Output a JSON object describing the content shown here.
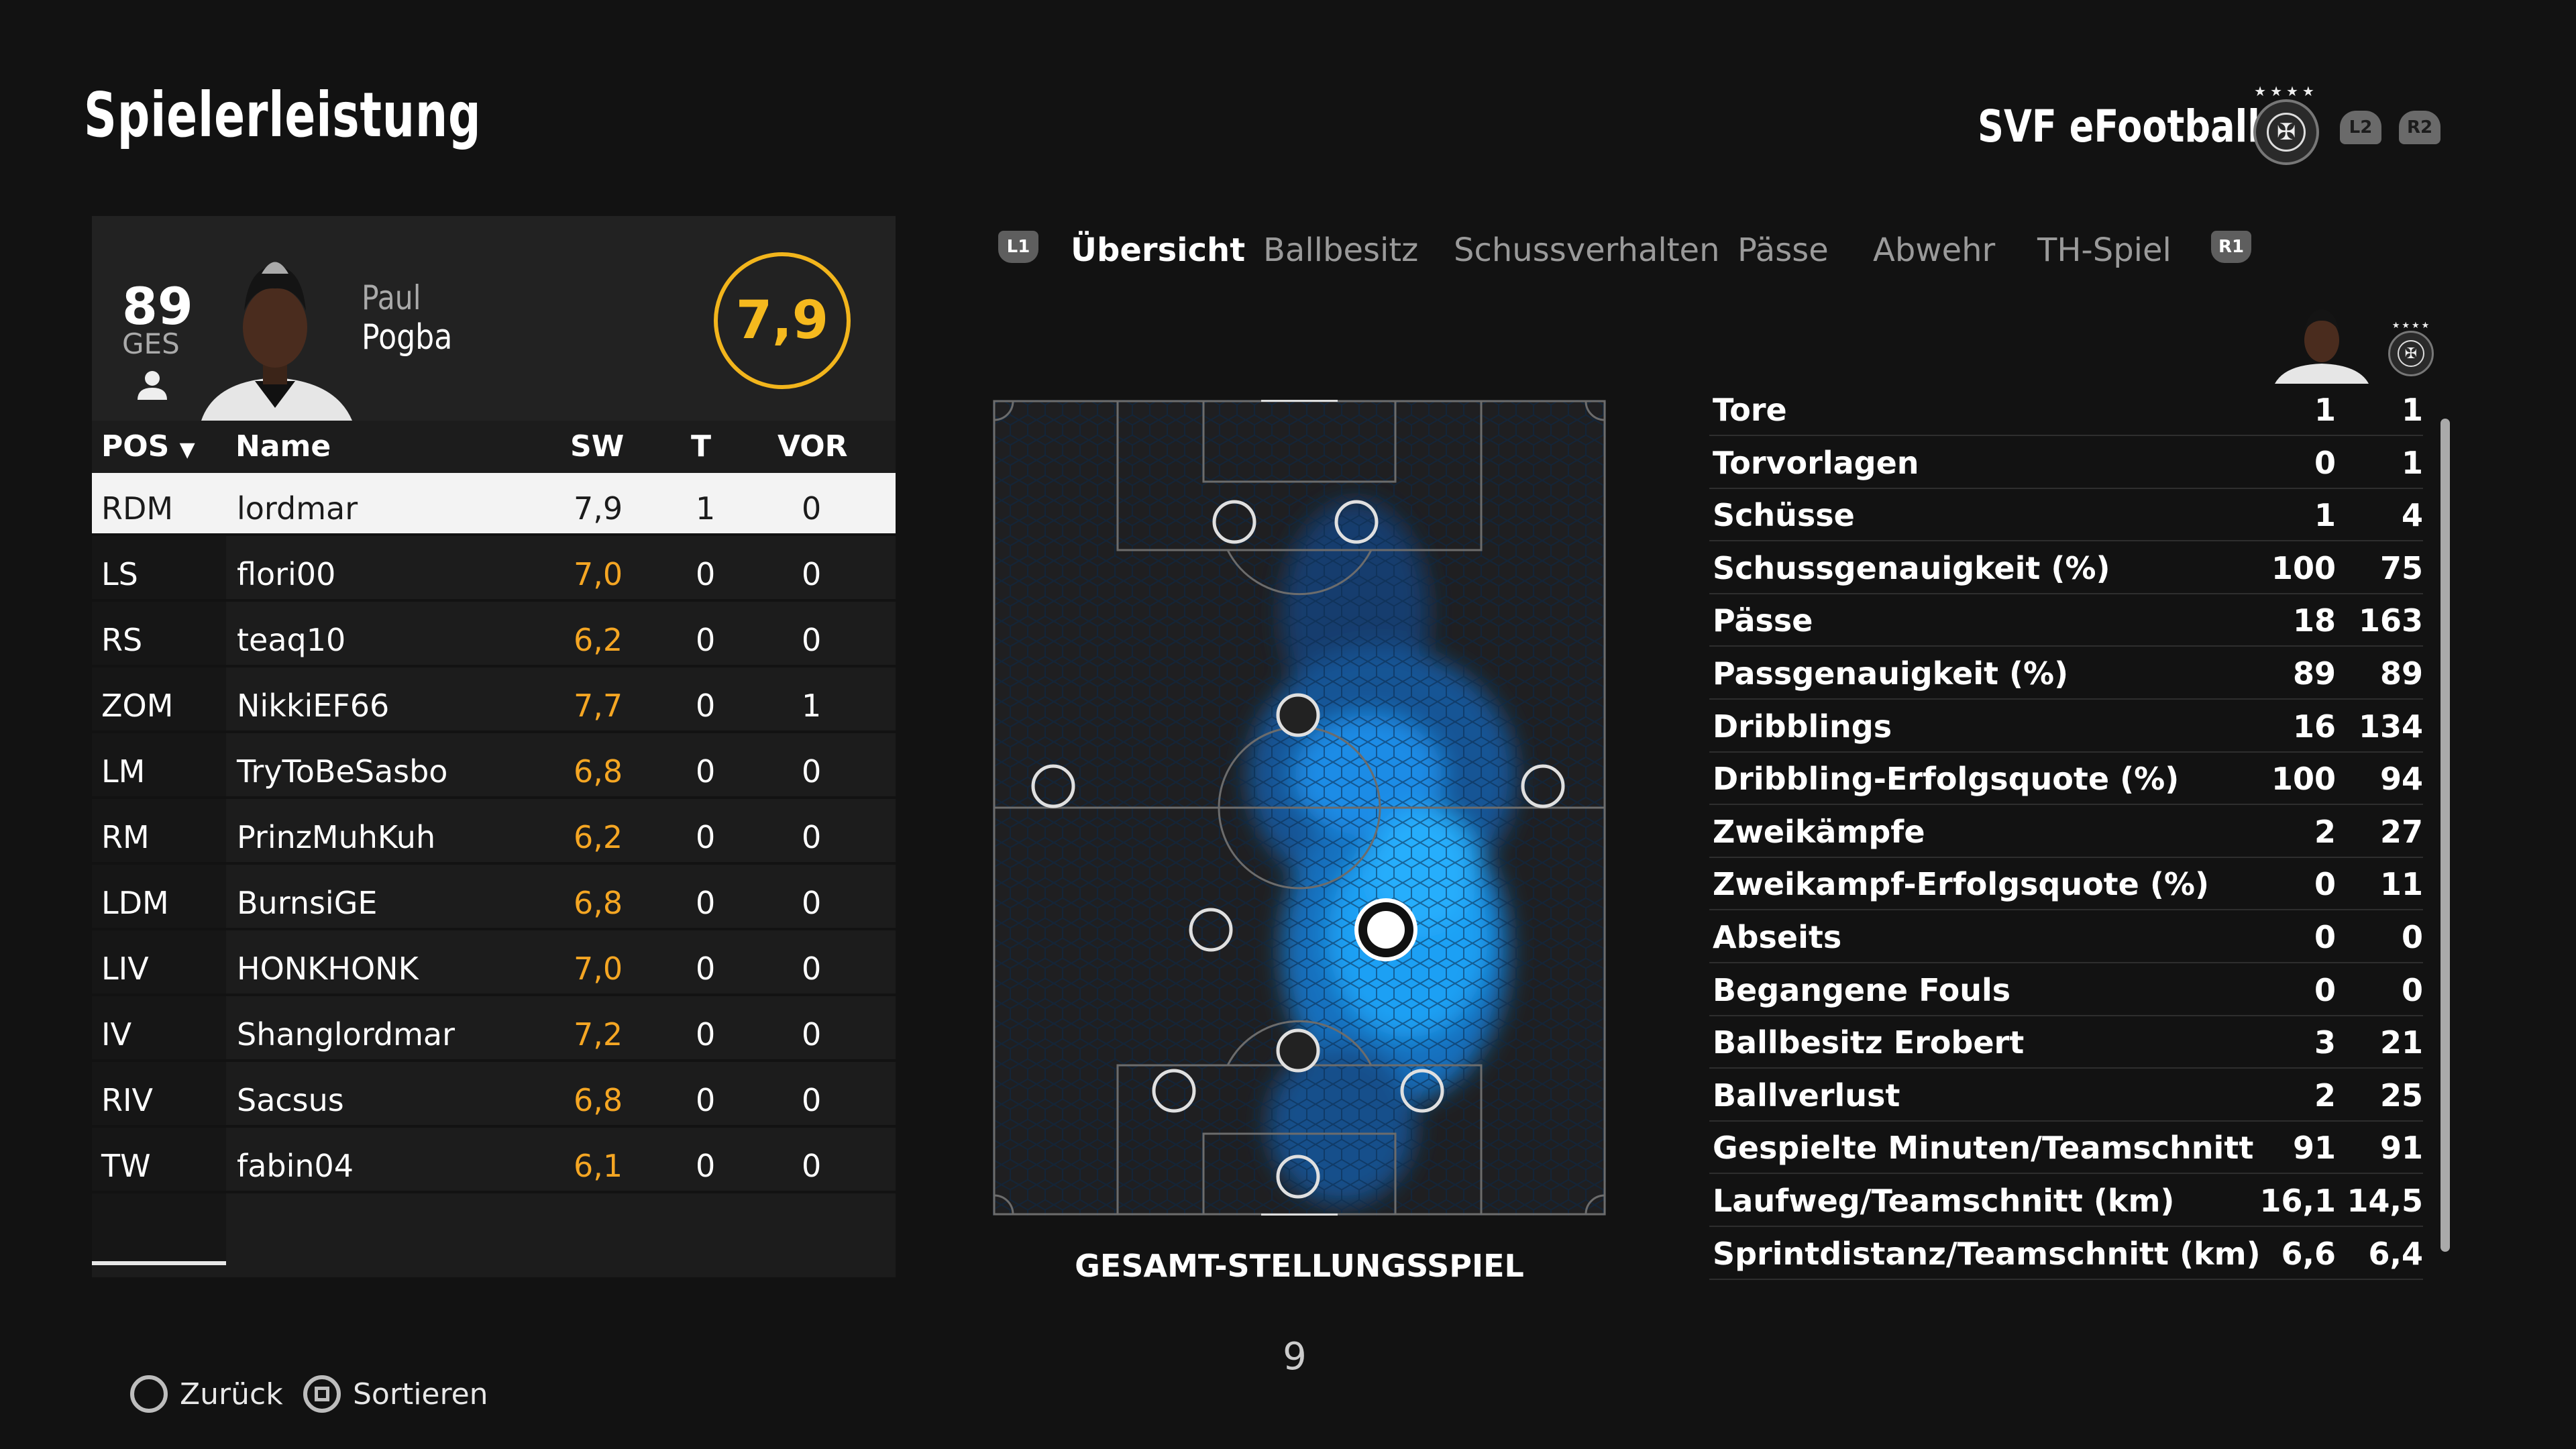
{
  "header": {
    "title": "Spielerleistung",
    "team": "SVF eFootball",
    "trigger_left": "L2",
    "trigger_right": "R2"
  },
  "player_card": {
    "ges_value": "89",
    "ges_label": "GES",
    "first_name": "Paul",
    "last_name": "Pogba",
    "rating": "7,9"
  },
  "table": {
    "headers": {
      "pos": "POS",
      "name": "Name",
      "sw": "SW",
      "t": "T",
      "vor": "VOR"
    },
    "rows": [
      {
        "pos": "RDM",
        "name": "lordmar",
        "sw": "7,9",
        "t": "1",
        "vor": "0",
        "selected": true
      },
      {
        "pos": "LS",
        "name": "flori00",
        "sw": "7,0",
        "t": "0",
        "vor": "0"
      },
      {
        "pos": "RS",
        "name": "teaq10",
        "sw": "6,2",
        "t": "0",
        "vor": "0"
      },
      {
        "pos": "ZOM",
        "name": "NikkiEF66",
        "sw": "7,7",
        "t": "0",
        "vor": "1"
      },
      {
        "pos": "LM",
        "name": "TryToBeSasbo",
        "sw": "6,8",
        "t": "0",
        "vor": "0"
      },
      {
        "pos": "RM",
        "name": "PrinzMuhKuh",
        "sw": "6,2",
        "t": "0",
        "vor": "0"
      },
      {
        "pos": "LDM",
        "name": "BurnsiGE",
        "sw": "6,8",
        "t": "0",
        "vor": "0"
      },
      {
        "pos": "LIV",
        "name": "HONKHONK",
        "sw": "7,0",
        "t": "0",
        "vor": "0"
      },
      {
        "pos": "IV",
        "name": "Shanglordmar",
        "sw": "7,2",
        "t": "0",
        "vor": "0"
      },
      {
        "pos": "RIV",
        "name": "Sacsus",
        "sw": "6,8",
        "t": "0",
        "vor": "0"
      },
      {
        "pos": "TW",
        "name": "fabin04",
        "sw": "6,1",
        "t": "0",
        "vor": "0"
      }
    ]
  },
  "tabs": {
    "left_button": "L1",
    "right_button": "R1",
    "items": [
      "Übersicht",
      "Ballbesitz",
      "Schussverhalten",
      "Pässe",
      "Abwehr",
      "TH-Spiel"
    ],
    "active": "Übersicht"
  },
  "pitch": {
    "label": "GESAMT-STELLUNGSSPIEL"
  },
  "page_number": "9",
  "stats": [
    {
      "label": "Tore",
      "player": "1",
      "team": "1"
    },
    {
      "label": "Torvorlagen",
      "player": "0",
      "team": "1"
    },
    {
      "label": "Schüsse",
      "player": "1",
      "team": "4"
    },
    {
      "label": "Schussgenauigkeit (%)",
      "player": "100",
      "team": "75"
    },
    {
      "label": "Pässe",
      "player": "18",
      "team": "163"
    },
    {
      "label": "Passgenauigkeit (%)",
      "player": "89",
      "team": "89"
    },
    {
      "label": "Dribblings",
      "player": "16",
      "team": "134"
    },
    {
      "label": "Dribbling-Erfolgsquote (%)",
      "player": "100",
      "team": "94"
    },
    {
      "label": "Zweikämpfe",
      "player": "2",
      "team": "27"
    },
    {
      "label": "Zweikampf-Erfolgsquote (%)",
      "player": "0",
      "team": "11"
    },
    {
      "label": "Abseits",
      "player": "0",
      "team": "0"
    },
    {
      "label": "Begangene Fouls",
      "player": "0",
      "team": "0"
    },
    {
      "label": "Ballbesitz Erobert",
      "player": "3",
      "team": "21"
    },
    {
      "label": "Ballverlust",
      "player": "2",
      "team": "25"
    },
    {
      "label": "Gespielte Minuten/Teamschnitt",
      "player": "91",
      "team": "91"
    },
    {
      "label": "Laufweg/Teamschnitt (km)",
      "player": "16,1",
      "team": "14,5"
    },
    {
      "label": "Sprintdistanz/Teamschnitt (km)",
      "player": "6,6",
      "team": "6,4"
    }
  ],
  "footer": {
    "back_label": "Zurück",
    "sort_label": "Sortieren"
  },
  "colors": {
    "rating_ring": "#f2b51c",
    "rating_value": "#f5a623",
    "heatmap": "#1e9cf0"
  }
}
